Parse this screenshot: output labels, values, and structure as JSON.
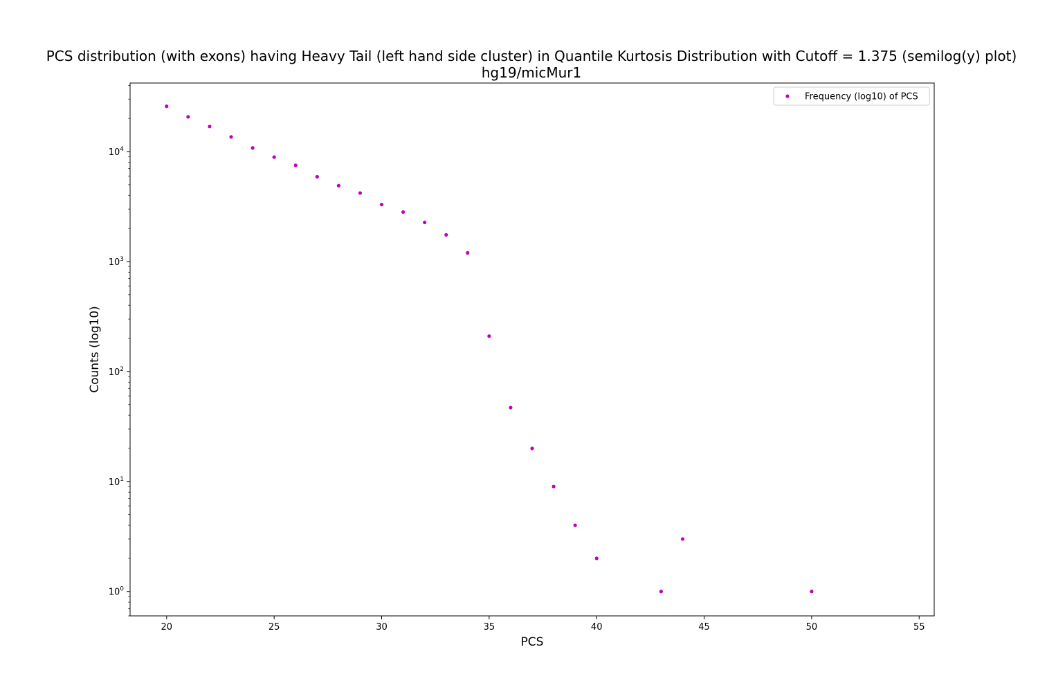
{
  "chart_data": {
    "type": "scatter",
    "title": "PCS distribution (with exons) having Heavy Tail (left hand side cluster) in Quantile Kurtosis Distribution with Cutoff = 1.375 (semilog(y) plot)",
    "subtitle": "hg19/micMur1",
    "xlabel": "PCS",
    "ylabel": "Counts (log10)",
    "y_scale": "log",
    "xlim": [
      18.3,
      55.7
    ],
    "ylim": [
      0.6,
      42000
    ],
    "x_ticks": [
      20,
      25,
      30,
      35,
      40,
      45,
      50,
      55
    ],
    "x_tick_labels": [
      "20",
      "25",
      "30",
      "35",
      "40",
      "45",
      "50",
      "55"
    ],
    "y_ticks": [
      {
        "value": 1,
        "base": "10",
        "exp": "0"
      },
      {
        "value": 10,
        "base": "10",
        "exp": "1"
      },
      {
        "value": 100,
        "base": "10",
        "exp": "2"
      },
      {
        "value": 1000,
        "base": "10",
        "exp": "3"
      },
      {
        "value": 10000,
        "base": "10",
        "exp": "4"
      }
    ],
    "grid": false,
    "legend_position": "top-right",
    "marker_color": "#bf00bf",
    "series": [
      {
        "name": "Frequency (log10) of PCS",
        "x": [
          20,
          21,
          22,
          23,
          24,
          25,
          26,
          27,
          28,
          29,
          30,
          31,
          32,
          33,
          34,
          35,
          36,
          37,
          38,
          39,
          40,
          43,
          44,
          50
        ],
        "y": [
          25800,
          20700,
          16900,
          13600,
          10800,
          8900,
          7500,
          5900,
          4900,
          4200,
          3300,
          2820,
          2270,
          1750,
          1200,
          210,
          47,
          20,
          9,
          4,
          2,
          1,
          3,
          1
        ]
      }
    ]
  }
}
